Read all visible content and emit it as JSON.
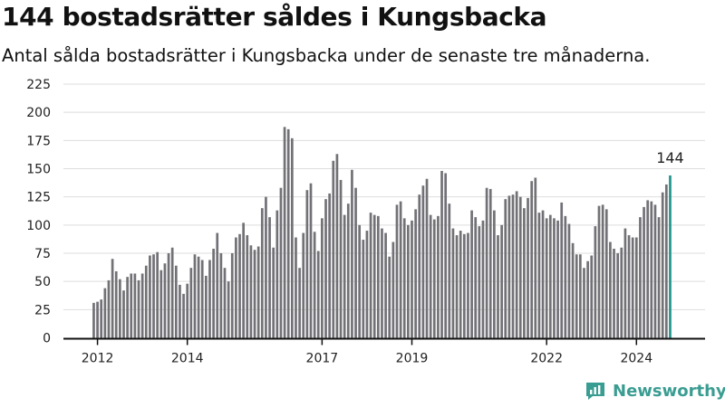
{
  "title": "144 bostadsrätter såldes i Kungsbacka",
  "subtitle": "Antal sålda bostadsrätter i Kungsbacka under de senaste tre månaderna.",
  "brand": {
    "name": "Newsworthy",
    "color": "#3a9d92"
  },
  "colors": {
    "bar": "#727176",
    "highlight": "#21958c",
    "grid": "#dddddd",
    "axis": "#111111"
  },
  "chart_data": {
    "type": "bar",
    "ylim": [
      0,
      225
    ],
    "yticks": [
      0,
      25,
      50,
      75,
      100,
      125,
      150,
      175,
      200,
      225
    ],
    "xticks": [
      {
        "label": "2012",
        "index": 1
      },
      {
        "label": "2014",
        "index": 25
      },
      {
        "label": "2017",
        "index": 61
      },
      {
        "label": "2019",
        "index": 85
      },
      {
        "label": "2022",
        "index": 121
      },
      {
        "label": "2024",
        "index": 145
      }
    ],
    "values": [
      31,
      32,
      34,
      44,
      51,
      70,
      59,
      52,
      42,
      54,
      57,
      57,
      51,
      57,
      64,
      73,
      74,
      76,
      60,
      66,
      75,
      80,
      64,
      47,
      39,
      48,
      62,
      74,
      72,
      69,
      55,
      69,
      79,
      93,
      75,
      62,
      50,
      75,
      89,
      92,
      102,
      91,
      82,
      78,
      81,
      115,
      125,
      107,
      80,
      113,
      133,
      187,
      185,
      177,
      89,
      62,
      93,
      131,
      137,
      94,
      77,
      106,
      123,
      128,
      157,
      163,
      140,
      109,
      119,
      149,
      133,
      100,
      87,
      95,
      111,
      109,
      108,
      97,
      93,
      72,
      85,
      118,
      121,
      106,
      100,
      104,
      114,
      127,
      135,
      141,
      109,
      105,
      108,
      148,
      146,
      119,
      97,
      91,
      95,
      92,
      93,
      113,
      107,
      99,
      104,
      133,
      132,
      113,
      91,
      100,
      123,
      126,
      127,
      130,
      125,
      115,
      124,
      139,
      142,
      111,
      113,
      106,
      109,
      106,
      104,
      120,
      108,
      101,
      84,
      74,
      74,
      62,
      68,
      73,
      99,
      117,
      118,
      114,
      85,
      79,
      75,
      80,
      97,
      91,
      89,
      89,
      107,
      116,
      122,
      121,
      118,
      107,
      129,
      136,
      144
    ],
    "highlight_index": 154,
    "annotation": "144"
  }
}
